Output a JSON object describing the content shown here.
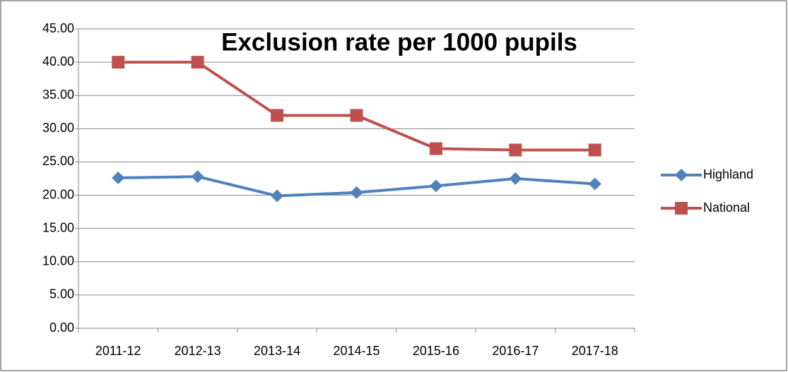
{
  "chart_data": {
    "type": "line",
    "title": "Exclusion rate per 1000 pupils",
    "categories": [
      "2011-12",
      "2012-13",
      "2013-14",
      "2014-15",
      "2015-16",
      "2016-17",
      "2017-18"
    ],
    "series": [
      {
        "name": "Highland",
        "color": "#4f81bd",
        "marker": "diamond",
        "values": [
          22.6,
          22.8,
          19.9,
          20.4,
          21.4,
          22.5,
          21.7
        ]
      },
      {
        "name": "National",
        "color": "#c0504d",
        "marker": "square",
        "values": [
          40,
          40,
          32,
          32,
          27,
          26.8,
          26.8
        ]
      }
    ],
    "ylim": [
      0,
      45
    ],
    "yticks": [
      {
        "value": 0,
        "label": "0.00"
      },
      {
        "value": 5,
        "label": "5.00"
      },
      {
        "value": 10,
        "label": "10.00"
      },
      {
        "value": 15,
        "label": "15.00"
      },
      {
        "value": 20,
        "label": "20.00"
      },
      {
        "value": 25,
        "label": "25.00"
      },
      {
        "value": 30,
        "label": "30.00"
      },
      {
        "value": 35,
        "label": "35.00"
      },
      {
        "value": 40,
        "label": "40.00"
      },
      {
        "value": 45,
        "label": "45.00"
      }
    ],
    "grid": true,
    "legend": "right"
  }
}
